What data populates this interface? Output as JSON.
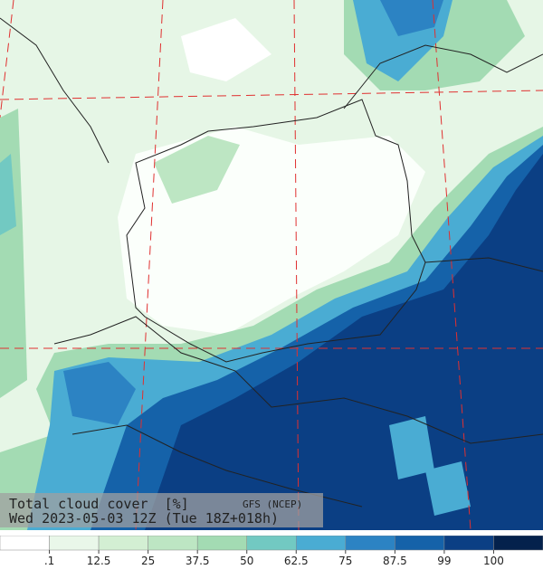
{
  "title": "Total cloud cover",
  "unit": "[%]",
  "model": "GFS (NCEP)",
  "valid_time": "Wed 2023-05-03 12Z (Tue 18Z+018h)",
  "colorbar": {
    "colors": [
      "#ffffff",
      "#e9f7e9",
      "#d3efd3",
      "#bde6c3",
      "#a3dbb3",
      "#72c9c2",
      "#4aacd3",
      "#2c83c3",
      "#1562a9",
      "#0b3f84",
      "#04214c"
    ],
    "ticks": [
      {
        "value": 0.1,
        "label": ".1"
      },
      12.5,
      25,
      37.5,
      50,
      62.5,
      75,
      87.5,
      99,
      100
    ]
  }
}
